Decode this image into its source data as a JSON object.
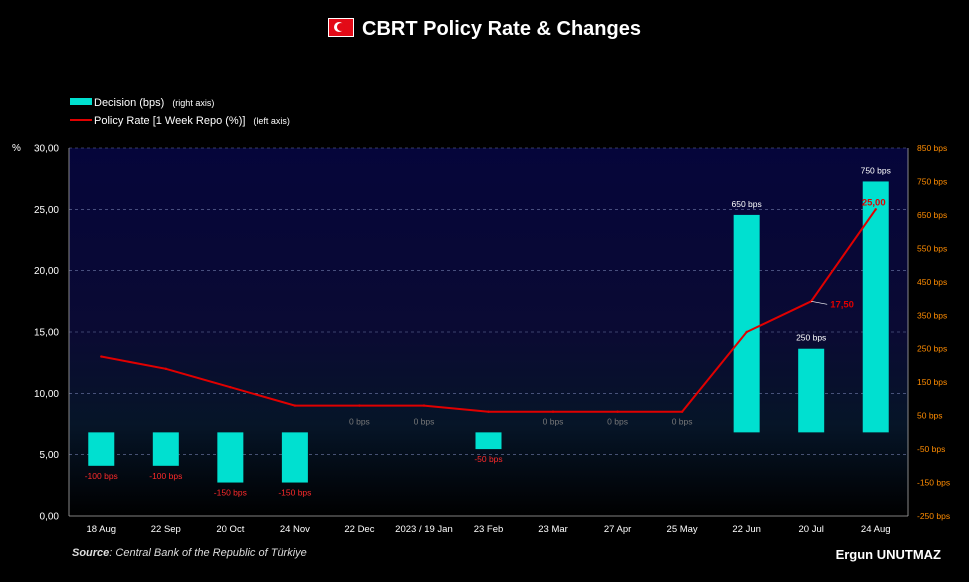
{
  "title": "CBRT Policy Rate & Changes",
  "flag_icon": "turkey-flag-icon",
  "legend": {
    "bar_label": "Decision (bps)",
    "bar_note": "(right axis)",
    "line_label": "Policy Rate [1 Week Repo (%)]",
    "line_note": "(left axis)"
  },
  "left_axis_unit": "%",
  "source_label": "Source",
  "source_text": ": Central Bank of the Republic of Türkiye",
  "author": "Ergun UNUTMAZ",
  "colors": {
    "bar": "#00e0d0",
    "line": "#e00000",
    "neg_label": "#ff2a2a",
    "zero_label": "#777777",
    "right_axis": "#ff8c00"
  },
  "chart_data": {
    "type": "bar",
    "title": "CBRT Policy Rate & Changes",
    "categories": [
      "18 Aug",
      "22 Sep",
      "20 Oct",
      "24 Nov",
      "22 Dec",
      "2023 / 19 Jan",
      "23 Feb",
      "23 Mar",
      "27 Apr",
      "25 May",
      "22 Jun",
      "20 Jul",
      "24 Aug"
    ],
    "series": [
      {
        "name": "Decision (bps)",
        "axis": "right",
        "type": "bar",
        "values": [
          -100,
          -100,
          -150,
          -150,
          0,
          0,
          -50,
          0,
          0,
          0,
          650,
          250,
          750
        ],
        "labels": [
          "-100 bps",
          "-100 bps",
          "-150 bps",
          "-150 bps",
          "0 bps",
          "0 bps",
          "-50 bps",
          "0 bps",
          "0 bps",
          "0 bps",
          "650 bps",
          "250 bps",
          "750 bps"
        ]
      },
      {
        "name": "Policy Rate [1 Week Repo (%)]",
        "axis": "left",
        "type": "line",
        "values": [
          13,
          12,
          10.5,
          9,
          9,
          9,
          8.5,
          8.5,
          8.5,
          8.5,
          15,
          17.5,
          25
        ],
        "point_labels": {
          "11": "17,50",
          "12": "25,00"
        }
      }
    ],
    "left_ticks": [
      "0,00",
      "5,00",
      "10,00",
      "15,00",
      "20,00",
      "25,00",
      "30,00"
    ],
    "ylim_left": [
      0,
      30
    ],
    "right_ticks": [
      "-250 bps",
      "-150 bps",
      "-50 bps",
      "50 bps",
      "150 bps",
      "250 bps",
      "350 bps",
      "450 bps",
      "550 bps",
      "650 bps",
      "750 bps",
      "850 bps"
    ],
    "ylim_right": [
      -250,
      850
    ],
    "grid": true
  }
}
